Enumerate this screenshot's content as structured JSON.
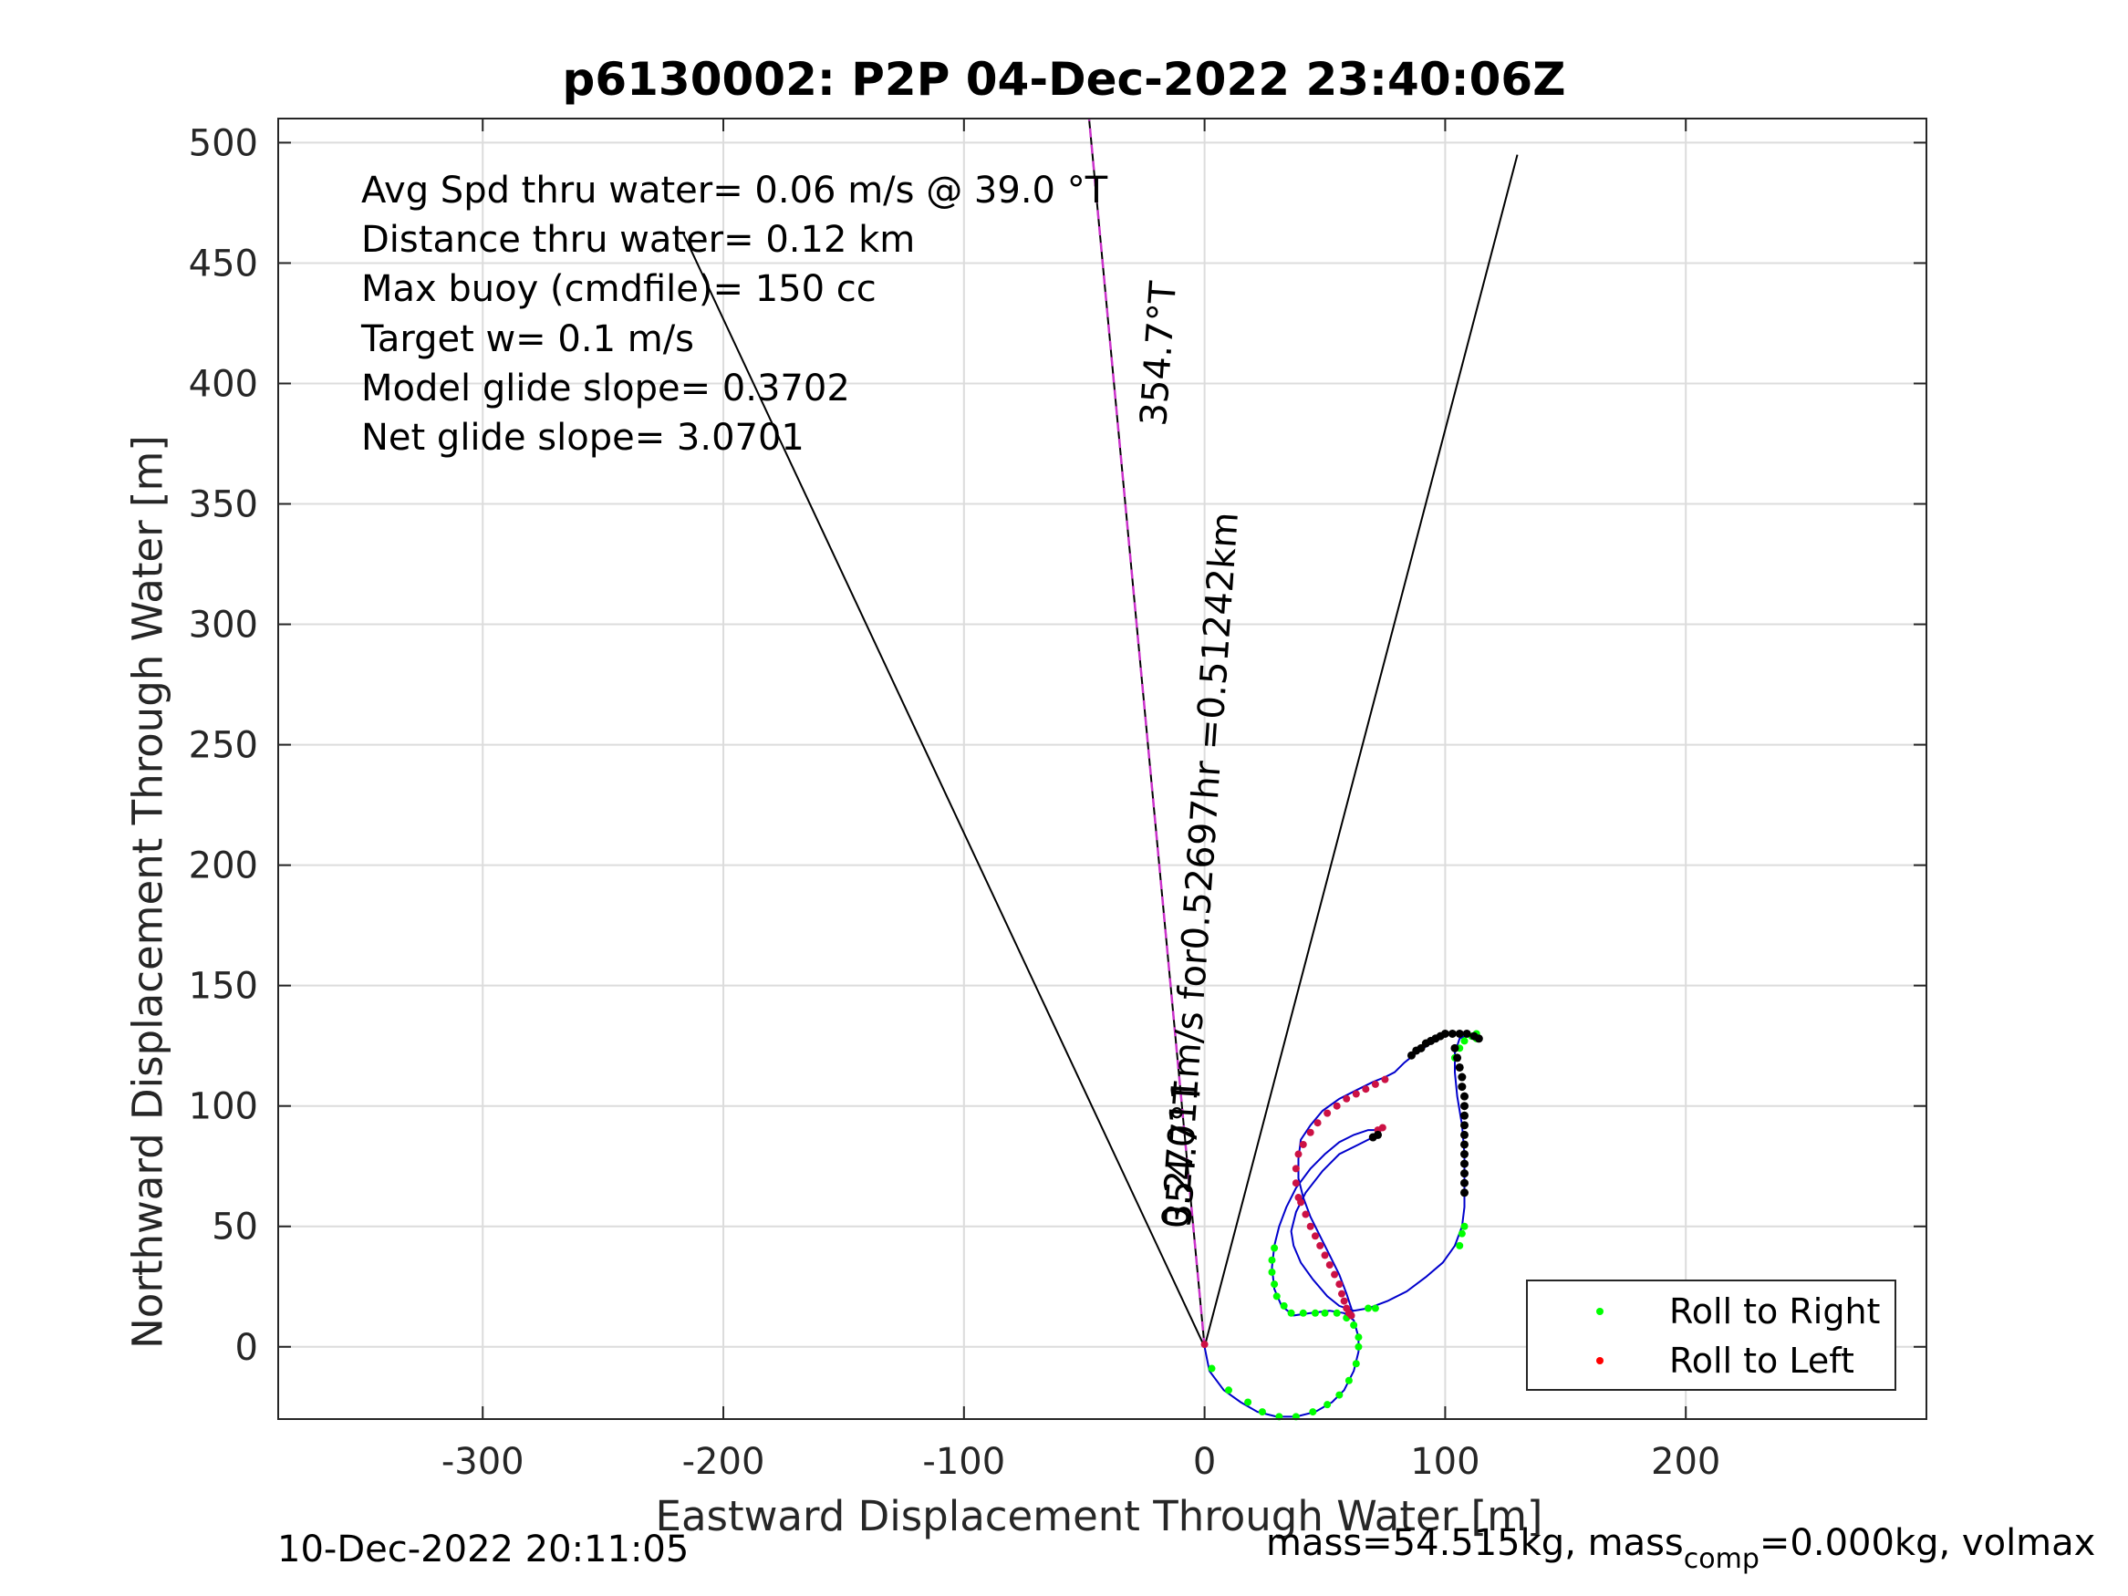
{
  "chart_data": {
    "type": "scatter",
    "title": "p6130002: P2P 04-Dec-2022 23:40:06Z",
    "xlabel": "Eastward Displacement Through Water [m]",
    "ylabel": "Northward Displacement Through Water [m]",
    "xlim": [
      -385,
      300
    ],
    "ylim": [
      -30,
      510
    ],
    "xticks": [
      -300,
      -200,
      -100,
      0,
      100,
      200
    ],
    "yticks": [
      0,
      50,
      100,
      150,
      200,
      250,
      300,
      350,
      400,
      450,
      500
    ],
    "grid": true,
    "legend_position": "bottom-right",
    "info_text": [
      "Avg Spd thru water=  0.06 m/s @  39.0 °T",
      "Distance thru water=  0.12 km",
      "Max buoy (cmdfile)= 150 cc",
      "Target w= 0.1 m/s",
      "Model glide slope= 0.3702",
      "Net glide slope= 3.0701"
    ],
    "annotations": {
      "heading_upper": "354.7°T",
      "heading_lower": "354.7°T",
      "speed_text": "0.27011m/s for0.52697hr =0.51242km"
    },
    "reference_lines": [
      {
        "name": "left-bound",
        "x": [
          0,
          -217
        ],
        "y": [
          0,
          463
        ],
        "color": "#000000"
      },
      {
        "name": "right-bound",
        "x": [
          0,
          130
        ],
        "y": [
          0,
          495
        ],
        "color": "#000000"
      },
      {
        "name": "course-line",
        "x": [
          0,
          -48
        ],
        "y": [
          0,
          510
        ],
        "color": "#000000"
      },
      {
        "name": "course-dashed",
        "x": [
          0,
          -48
        ],
        "y": [
          0,
          510
        ],
        "color": "#cc33cc"
      }
    ],
    "track": {
      "name": "glider-track",
      "color": "#0000cc",
      "points": [
        [
          0,
          0
        ],
        [
          2,
          -10
        ],
        [
          8,
          -18
        ],
        [
          15,
          -23
        ],
        [
          22,
          -27
        ],
        [
          30,
          -29
        ],
        [
          38,
          -29
        ],
        [
          46,
          -27
        ],
        [
          53,
          -23
        ],
        [
          58,
          -18
        ],
        [
          62,
          -10
        ],
        [
          64,
          -2
        ],
        [
          64,
          4
        ],
        [
          62,
          11
        ],
        [
          58,
          14
        ],
        [
          52,
          15
        ],
        [
          44,
          14
        ],
        [
          37,
          13
        ],
        [
          32,
          17
        ],
        [
          29,
          24
        ],
        [
          28,
          33
        ],
        [
          29,
          42
        ],
        [
          31,
          50
        ],
        [
          34,
          58
        ],
        [
          38,
          66
        ],
        [
          44,
          74
        ],
        [
          50,
          80
        ],
        [
          56,
          85
        ],
        [
          62,
          88
        ],
        [
          68,
          90
        ],
        [
          72,
          90
        ],
        [
          74,
          91
        ],
        [
          72,
          88
        ],
        [
          64,
          84
        ],
        [
          56,
          80
        ],
        [
          49,
          73
        ],
        [
          42,
          64
        ],
        [
          38,
          56
        ],
        [
          36,
          48
        ],
        [
          37,
          42
        ],
        [
          40,
          35
        ],
        [
          45,
          28
        ],
        [
          51,
          21
        ],
        [
          56,
          17
        ],
        [
          62,
          15
        ],
        [
          68,
          16
        ],
        [
          76,
          19
        ],
        [
          84,
          23
        ],
        [
          92,
          29
        ],
        [
          99,
          35
        ],
        [
          104,
          42
        ],
        [
          107,
          50
        ],
        [
          108,
          58
        ],
        [
          108,
          68
        ],
        [
          108,
          80
        ],
        [
          107,
          92
        ],
        [
          105,
          104
        ],
        [
          104,
          114
        ],
        [
          104,
          122
        ],
        [
          106,
          128
        ],
        [
          110,
          130
        ],
        [
          114,
          128
        ],
        [
          110,
          130
        ],
        [
          102,
          130
        ],
        [
          94,
          126
        ],
        [
          88,
          122
        ],
        [
          83,
          118
        ],
        [
          79,
          114
        ],
        [
          75,
          112
        ],
        [
          70,
          110
        ],
        [
          64,
          107
        ],
        [
          56,
          103
        ],
        [
          49,
          98
        ],
        [
          44,
          92
        ],
        [
          40,
          86
        ],
        [
          39,
          78
        ],
        [
          39,
          70
        ],
        [
          41,
          62
        ],
        [
          44,
          54
        ],
        [
          48,
          46
        ],
        [
          52,
          38
        ],
        [
          56,
          30
        ],
        [
          59,
          22
        ],
        [
          61,
          16
        ],
        [
          62,
          12
        ]
      ]
    },
    "roll_right_points": [
      [
        3,
        -9
      ],
      [
        10,
        -18
      ],
      [
        18,
        -23
      ],
      [
        24,
        -27
      ],
      [
        31,
        -29
      ],
      [
        38,
        -29
      ],
      [
        45,
        -27
      ],
      [
        51,
        -24
      ],
      [
        56,
        -20
      ],
      [
        60,
        -14
      ],
      [
        63,
        -7
      ],
      [
        64,
        0
      ],
      [
        64,
        4
      ],
      [
        62,
        9
      ],
      [
        59,
        12
      ],
      [
        55,
        14
      ],
      [
        50,
        14
      ],
      [
        46,
        14
      ],
      [
        41,
        14
      ],
      [
        36,
        14
      ],
      [
        33,
        17
      ],
      [
        30,
        21
      ],
      [
        29,
        26
      ],
      [
        28,
        31
      ],
      [
        28,
        36
      ],
      [
        29,
        41
      ],
      [
        106,
        42
      ],
      [
        107,
        47
      ],
      [
        108,
        50
      ],
      [
        104,
        120
      ],
      [
        106,
        124
      ],
      [
        108,
        127
      ],
      [
        111,
        129
      ],
      [
        113,
        130
      ],
      [
        113,
        128
      ],
      [
        68,
        16
      ],
      [
        71,
        16
      ]
    ],
    "roll_left_points": [
      [
        0,
        1
      ],
      [
        39,
        62
      ],
      [
        38,
        68
      ],
      [
        38,
        74
      ],
      [
        39,
        80
      ],
      [
        41,
        84
      ],
      [
        44,
        89
      ],
      [
        47,
        93
      ],
      [
        51,
        97
      ],
      [
        55,
        100
      ],
      [
        59,
        103
      ],
      [
        63,
        105
      ],
      [
        67,
        107
      ],
      [
        71,
        109
      ],
      [
        75,
        111
      ],
      [
        74,
        91
      ],
      [
        72,
        90
      ],
      [
        40,
        60
      ],
      [
        42,
        55
      ],
      [
        44,
        50
      ],
      [
        46,
        46
      ],
      [
        48,
        42
      ],
      [
        50,
        38
      ],
      [
        52,
        34
      ],
      [
        54,
        30
      ],
      [
        56,
        26
      ],
      [
        57,
        22
      ],
      [
        58,
        19
      ],
      [
        59,
        16
      ],
      [
        60,
        14
      ],
      [
        61,
        13
      ]
    ],
    "dense_black_points": [
      [
        86,
        121
      ],
      [
        88,
        123
      ],
      [
        90,
        124
      ],
      [
        92,
        126
      ],
      [
        94,
        127
      ],
      [
        96,
        128
      ],
      [
        98,
        129
      ],
      [
        100,
        130
      ],
      [
        103,
        130
      ],
      [
        106,
        130
      ],
      [
        109,
        130
      ],
      [
        112,
        129
      ],
      [
        114,
        128
      ],
      [
        104,
        124
      ],
      [
        105,
        120
      ],
      [
        106,
        116
      ],
      [
        107,
        112
      ],
      [
        107,
        108
      ],
      [
        108,
        104
      ],
      [
        108,
        100
      ],
      [
        108,
        96
      ],
      [
        108,
        92
      ],
      [
        108,
        88
      ],
      [
        108,
        84
      ],
      [
        108,
        80
      ],
      [
        108,
        76
      ],
      [
        108,
        72
      ],
      [
        108,
        68
      ],
      [
        108,
        64
      ],
      [
        72,
        88
      ],
      [
        70,
        87
      ]
    ],
    "legend": [
      {
        "label": "Roll to Right",
        "color": "#00ff00"
      },
      {
        "label": "Roll to Left",
        "color": "#ff0000"
      }
    ]
  },
  "footer": {
    "date": "10-Dec-2022 20:11:05",
    "mass_prefix": "mass=54.515kg, mass",
    "mass_sub": "comp",
    "mass_suffix": "=0.000kg, volmax"
  }
}
